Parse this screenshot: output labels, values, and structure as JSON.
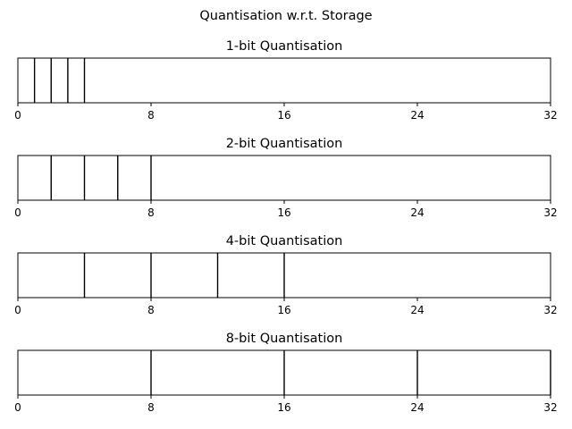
{
  "figure": {
    "title": "Quantisation w.r.t. Storage"
  },
  "chart_data": [
    {
      "type": "bar",
      "title": "1-bit Quantisation",
      "xlim": [
        0,
        32
      ],
      "xticks": [
        0,
        8,
        16,
        24,
        32
      ],
      "xtick_labels": [
        "0",
        "8",
        "16",
        "24",
        "32"
      ],
      "dividers": [
        1,
        2,
        3,
        4
      ],
      "grid": false
    },
    {
      "type": "bar",
      "title": "2-bit Quantisation",
      "xlim": [
        0,
        32
      ],
      "xticks": [
        0,
        8,
        16,
        24,
        32
      ],
      "xtick_labels": [
        "0",
        "8",
        "16",
        "24",
        "32"
      ],
      "dividers": [
        2,
        4,
        6,
        8
      ],
      "grid": false
    },
    {
      "type": "bar",
      "title": "4-bit Quantisation",
      "xlim": [
        0,
        32
      ],
      "xticks": [
        0,
        8,
        16,
        24,
        32
      ],
      "xtick_labels": [
        "0",
        "8",
        "16",
        "24",
        "32"
      ],
      "dividers": [
        4,
        8,
        12,
        16
      ],
      "grid": false
    },
    {
      "type": "bar",
      "title": "8-bit Quantisation",
      "xlim": [
        0,
        32
      ],
      "xticks": [
        0,
        8,
        16,
        24,
        32
      ],
      "xtick_labels": [
        "0",
        "8",
        "16",
        "24",
        "32"
      ],
      "dividers": [
        8,
        16,
        24,
        32
      ],
      "grid": false
    }
  ]
}
